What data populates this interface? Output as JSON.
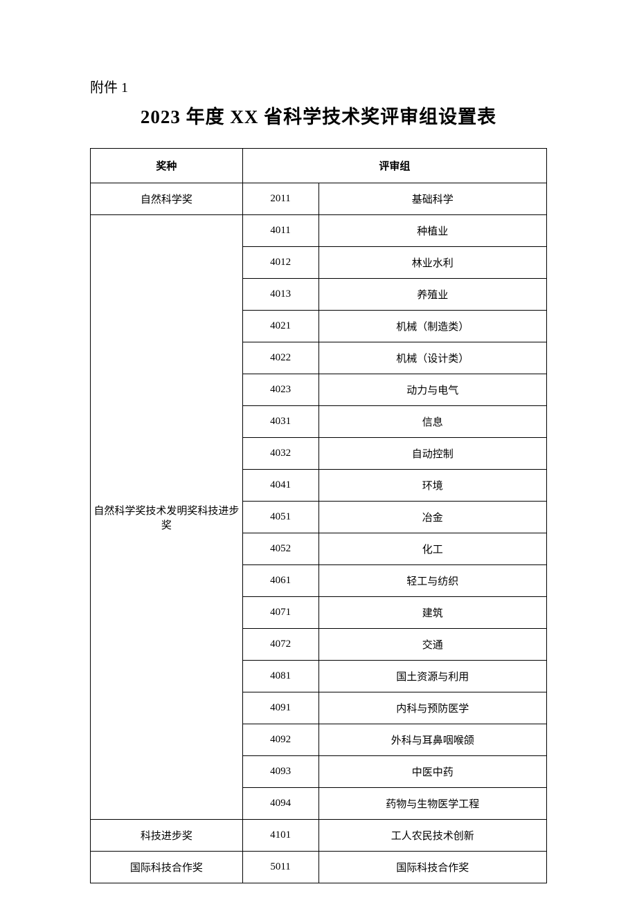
{
  "header": {
    "attachment_label": "附件 1",
    "title": "2023 年度 XX 省科学技术奖评审组设置表"
  },
  "table": {
    "columns": {
      "category": "奖种",
      "group": "评审组"
    },
    "column_widths": {
      "category": 220,
      "code": 110,
      "name": 330
    },
    "border_color": "#000000",
    "background_color": "#ffffff",
    "header_fontsize": 15,
    "cell_fontsize": 15,
    "header_row_height": 50,
    "data_row_height": 46,
    "rows": [
      {
        "category": "自然科学奖",
        "code": "2011",
        "name": "基础科学",
        "rowspan": 1
      },
      {
        "category": "自然科学奖技术发明奖科技进步奖",
        "code": "4011",
        "name": "种植业",
        "rowspan": 19
      },
      {
        "category": null,
        "code": "4012",
        "name": "林业水利",
        "rowspan": 0
      },
      {
        "category": null,
        "code": "4013",
        "name": "养殖业",
        "rowspan": 0
      },
      {
        "category": null,
        "code": "4021",
        "name": "机械（制造类）",
        "rowspan": 0
      },
      {
        "category": null,
        "code": "4022",
        "name": "机械（设计类）",
        "rowspan": 0
      },
      {
        "category": null,
        "code": "4023",
        "name": "动力与电气",
        "rowspan": 0
      },
      {
        "category": null,
        "code": "4031",
        "name": "信息",
        "rowspan": 0
      },
      {
        "category": null,
        "code": "4032",
        "name": "自动控制",
        "rowspan": 0
      },
      {
        "category": null,
        "code": "4041",
        "name": "环境",
        "rowspan": 0
      },
      {
        "category": null,
        "code": "4051",
        "name": "冶金",
        "rowspan": 0
      },
      {
        "category": null,
        "code": "4052",
        "name": "化工",
        "rowspan": 0
      },
      {
        "category": null,
        "code": "4061",
        "name": "轻工与纺织",
        "rowspan": 0
      },
      {
        "category": null,
        "code": "4071",
        "name": "建筑",
        "rowspan": 0
      },
      {
        "category": null,
        "code": "4072",
        "name": "交通",
        "rowspan": 0
      },
      {
        "category": null,
        "code": "4081",
        "name": "国土资源与利用",
        "rowspan": 0
      },
      {
        "category": null,
        "code": "4091",
        "name": "内科与预防医学",
        "rowspan": 0
      },
      {
        "category": null,
        "code": "4092",
        "name": "外科与耳鼻咽喉颌",
        "rowspan": 0
      },
      {
        "category": null,
        "code": "4093",
        "name": "中医中药",
        "rowspan": 0
      },
      {
        "category": null,
        "code": "4094",
        "name": "药物与生物医学工程",
        "rowspan": 0
      },
      {
        "category": "科技进步奖",
        "code": "4101",
        "name": "工人农民技术创新",
        "rowspan": 1
      },
      {
        "category": "国际科技合作奖",
        "code": "5011",
        "name": "国际科技合作奖",
        "rowspan": 1
      }
    ]
  }
}
